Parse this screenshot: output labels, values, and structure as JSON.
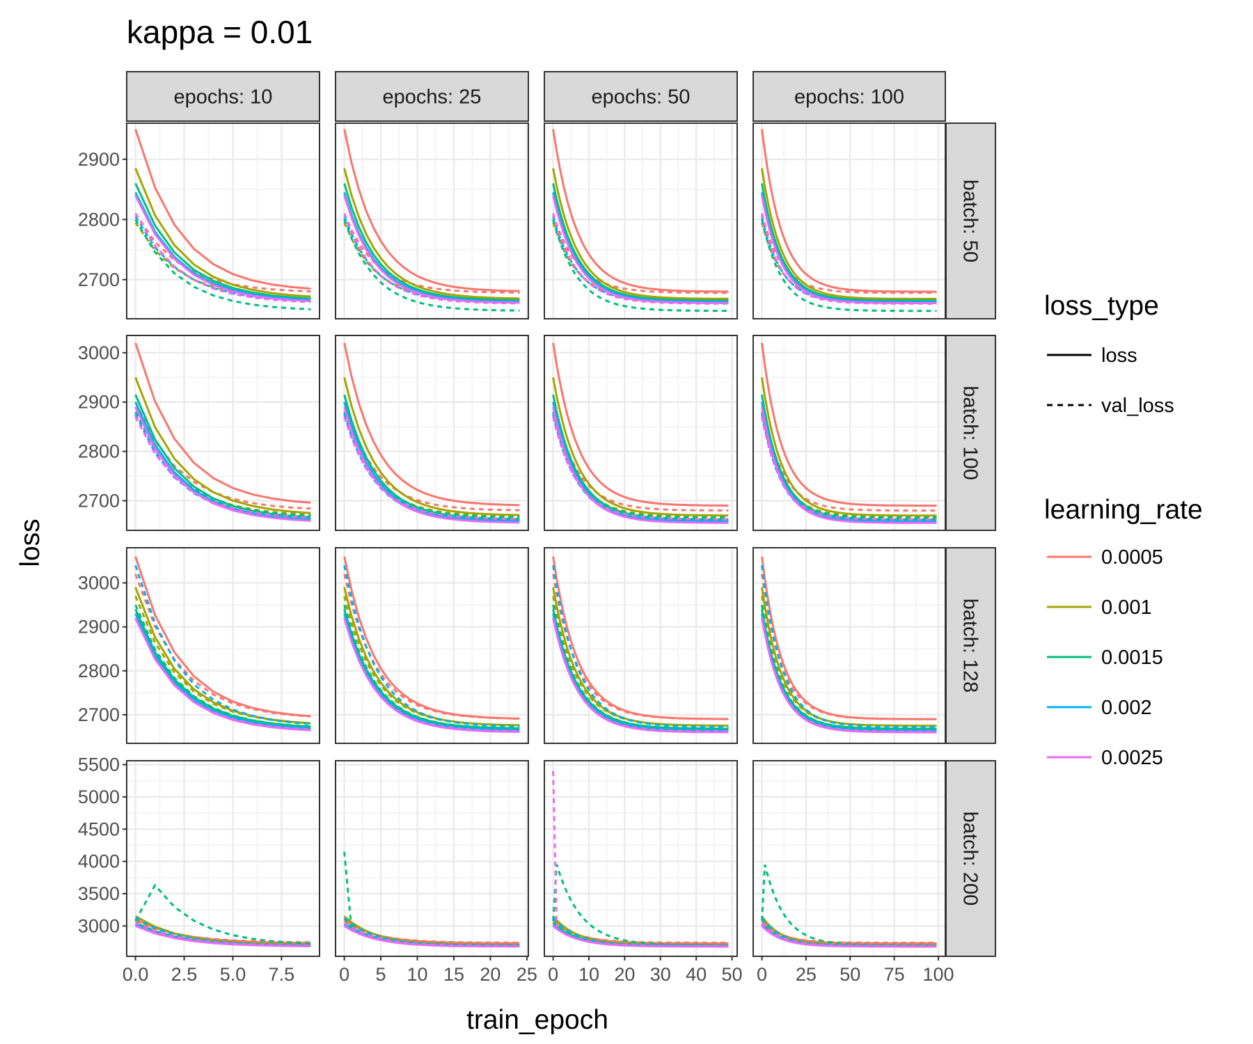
{
  "chart_data": {
    "type": "line",
    "title": "kappa = 0.01",
    "xlabel": "train_epoch",
    "ylabel": "loss",
    "col_facets": [
      {
        "label": "epochs: 10",
        "epochs": 10,
        "xlim": [
          -0.45,
          9.45
        ],
        "x_ticks": [
          0,
          2.5,
          5,
          7.5
        ],
        "x_tick_labels": [
          "0.0",
          "2.5",
          "5.0",
          "7.5"
        ]
      },
      {
        "label": "epochs: 25",
        "epochs": 25,
        "xlim": [
          -1.2,
          25.2
        ],
        "x_ticks": [
          0,
          5,
          10,
          15,
          20,
          25
        ],
        "x_tick_labels": [
          "0",
          "5",
          "10",
          "15",
          "20",
          "25"
        ]
      },
      {
        "label": "epochs: 50",
        "epochs": 50,
        "xlim": [
          -2.45,
          51.45
        ],
        "x_ticks": [
          0,
          10,
          20,
          30,
          40,
          50
        ],
        "x_tick_labels": [
          "0",
          "10",
          "20",
          "30",
          "40",
          "50"
        ]
      },
      {
        "label": "epochs: 100",
        "epochs": 100,
        "xlim": [
          -4.95,
          103.95
        ],
        "x_ticks": [
          0,
          25,
          50,
          75,
          100
        ],
        "x_tick_labels": [
          "0",
          "25",
          "50",
          "75",
          "100"
        ]
      }
    ],
    "row_facets": [
      {
        "label": "batch: 50",
        "ylim": [
          2635,
          2960
        ],
        "y_ticks": [
          2700,
          2800,
          2900
        ],
        "y_tick_labels": [
          "2700",
          "2800",
          "2900"
        ],
        "loss_start": [
          2950,
          2885,
          2860,
          2845,
          2840
        ],
        "loss_end": [
          2680,
          2668,
          2665,
          2663,
          2661
        ],
        "val_start": [
          2810,
          2795,
          2800,
          2805,
          2810
        ],
        "val_end": [
          2678,
          2666,
          2648,
          2662,
          2660
        ]
      },
      {
        "label": "batch: 100",
        "ylim": [
          2640,
          3035
        ],
        "y_ticks": [
          2700,
          2800,
          2900,
          3000
        ],
        "y_tick_labels": [
          "2700",
          "2800",
          "2900",
          "3000"
        ],
        "loss_start": [
          3020,
          2950,
          2915,
          2900,
          2890
        ],
        "loss_end": [
          2690,
          2670,
          2662,
          2658,
          2655
        ],
        "val_start": [
          2900,
          2880,
          2880,
          2875,
          2870
        ],
        "val_end": [
          2680,
          2668,
          2666,
          2658,
          2662
        ]
      },
      {
        "label": "batch: 128",
        "ylim": [
          2635,
          3080
        ],
        "y_ticks": [
          2700,
          2800,
          2900,
          3000
        ],
        "y_tick_labels": [
          "2700",
          "2800",
          "2900",
          "3000"
        ],
        "loss_start": [
          3060,
          2990,
          2940,
          2930,
          2920
        ],
        "loss_end": [
          2690,
          2675,
          2668,
          2664,
          2660
        ],
        "val_start": [
          3020,
          2970,
          2950,
          3040,
          2920
        ],
        "val_end": [
          2690,
          2675,
          2668,
          2672,
          2662
        ]
      },
      {
        "label": "batch: 200",
        "ylim": [
          2530,
          5560
        ],
        "y_ticks": [
          3000,
          3500,
          4000,
          4500,
          5000,
          5500
        ],
        "y_tick_labels": [
          "3000",
          "3500",
          "4000",
          "4500",
          "5000",
          "5500"
        ],
        "loss_start": [
          3100,
          3150,
          3050,
          3020,
          3000
        ],
        "loss_end": [
          2730,
          2700,
          2690,
          2685,
          2680
        ],
        "val_start": [
          3080,
          3100,
          4150,
          3120,
          3050
        ],
        "val_end": [
          2740,
          2710,
          2700,
          2695,
          2690
        ],
        "spikes": [
          {
            "col": 1,
            "lr": 2,
            "value": 4150
          },
          {
            "col": 2,
            "lr": 4,
            "value": 5400
          }
        ]
      }
    ],
    "series": [
      {
        "name": "0.0005",
        "color": "#F8766D"
      },
      {
        "name": "0.001",
        "color": "#A3A500"
      },
      {
        "name": "0.0015",
        "color": "#00BF7D"
      },
      {
        "name": "0.002",
        "color": "#00B0F6"
      },
      {
        "name": "0.0025",
        "color": "#E76BF3"
      }
    ],
    "legend": {
      "placement": "right",
      "loss_type_title": "loss_type",
      "loss_type_entries": [
        {
          "label": "loss",
          "dash": "solid"
        },
        {
          "label": "val_loss",
          "dash": "dashed"
        }
      ],
      "learning_rate_title": "learning_rate"
    },
    "grid": true
  }
}
